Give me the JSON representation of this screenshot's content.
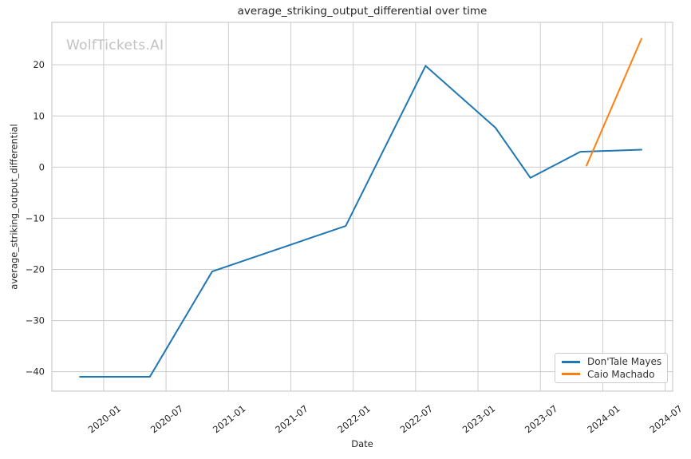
{
  "chart_data": {
    "type": "line",
    "title": "average_striking_output_differential over time",
    "xlabel": "Date",
    "ylabel": "average_striking_output_differential",
    "watermark": "WolfTickets.AI",
    "grid": true,
    "legend_position": "lower right",
    "x_unit": "decimal_year",
    "xlim": [
      2019.585,
      2024.56
    ],
    "ylim": [
      -43.8,
      28.3
    ],
    "x_ticks": [
      {
        "value": 2020.0,
        "label": "2020-01"
      },
      {
        "value": 2020.5,
        "label": "2020-07"
      },
      {
        "value": 2021.0,
        "label": "2021-01"
      },
      {
        "value": 2021.5,
        "label": "2021-07"
      },
      {
        "value": 2022.0,
        "label": "2022-01"
      },
      {
        "value": 2022.5,
        "label": "2022-07"
      },
      {
        "value": 2023.0,
        "label": "2023-01"
      },
      {
        "value": 2023.5,
        "label": "2023-07"
      },
      {
        "value": 2024.0,
        "label": "2024-01"
      },
      {
        "value": 2024.5,
        "label": "2024-07"
      }
    ],
    "y_ticks": [
      {
        "value": 20,
        "label": "20"
      },
      {
        "value": 10,
        "label": "10"
      },
      {
        "value": 0,
        "label": "0"
      },
      {
        "value": -10,
        "label": "−10"
      },
      {
        "value": -20,
        "label": "−20"
      },
      {
        "value": -30,
        "label": "−30"
      },
      {
        "value": -40,
        "label": "−40"
      }
    ],
    "series": [
      {
        "name": "Don'Tale Mayes",
        "color": "#1f77b4",
        "dates": [
          "2019-10",
          "2020-05",
          "2020-11",
          "2021-12",
          "2022-08",
          "2023-02",
          "2023-06",
          "2023-10",
          "2024-04"
        ],
        "x": [
          2019.81,
          2020.37,
          2020.87,
          2021.94,
          2022.58,
          2023.14,
          2023.42,
          2023.82,
          2024.31
        ],
        "y": [
          -41,
          -41,
          -20.4,
          -11.5,
          19.8,
          7.7,
          -2.1,
          3.0,
          3.4
        ]
      },
      {
        "name": "Caio Machado",
        "color": "#ff7f0e",
        "dates": [
          "2023-11",
          "2024-04"
        ],
        "x": [
          2023.87,
          2024.31
        ],
        "y": [
          0.3,
          25.1
        ]
      }
    ],
    "colors": {
      "grid": "#cccccc",
      "spine": "#cccccc",
      "text": "#262626",
      "watermark": "#c2c2c2",
      "background": "#ffffff"
    }
  }
}
